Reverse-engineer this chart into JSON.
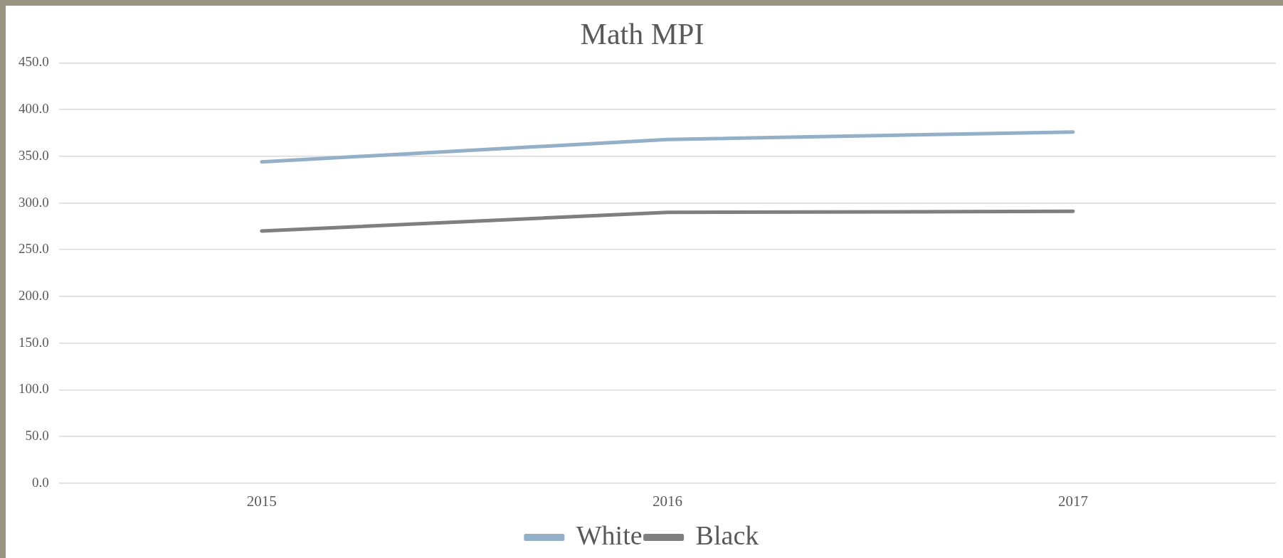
{
  "chart_data": {
    "type": "line",
    "title": "Math MPI",
    "categories": [
      "2015",
      "2016",
      "2017"
    ],
    "series": [
      {
        "name": "White",
        "color": "#94b0c9",
        "values": [
          344,
          368,
          376
        ]
      },
      {
        "name": "Black",
        "color": "#7f7f7f",
        "values": [
          270,
          290,
          291
        ]
      }
    ],
    "ylim": [
      0,
      450
    ],
    "yticks": [
      {
        "value": 0,
        "label": "0.0"
      },
      {
        "value": 50,
        "label": "50.0"
      },
      {
        "value": 100,
        "label": "100.0"
      },
      {
        "value": 150,
        "label": "150.0"
      },
      {
        "value": 200,
        "label": "200.0"
      },
      {
        "value": 250,
        "label": "250.0"
      },
      {
        "value": 300,
        "label": "300.0"
      },
      {
        "value": 350,
        "label": "350.0"
      },
      {
        "value": 400,
        "label": "400.0"
      },
      {
        "value": 450,
        "label": "450.0"
      }
    ],
    "grid": "y",
    "legend": "bottom",
    "marker": "none",
    "line_style": "solid"
  }
}
